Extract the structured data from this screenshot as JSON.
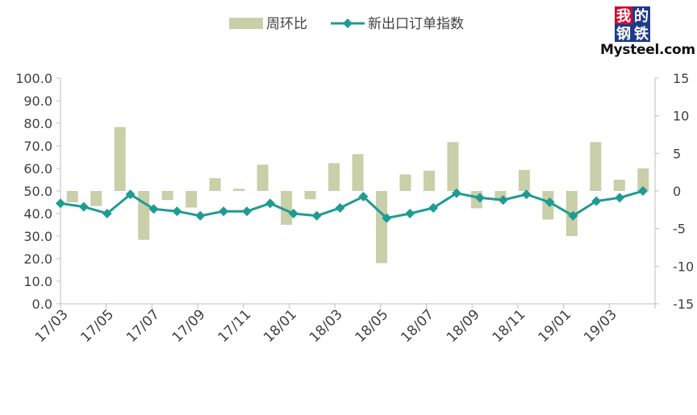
{
  "chart_data": {
    "type": "bar+line",
    "legend": {
      "bar_label": "周环比",
      "line_label": "新出口订单指数",
      "placement": "top-center"
    },
    "x_ticks": [
      "17/03",
      "17/05",
      "17/07",
      "17/09",
      "17/11",
      "18/01",
      "18/03",
      "18/05",
      "18/07",
      "18/09",
      "18/11",
      "19/01",
      "19/03"
    ],
    "y_left": {
      "ticks": [
        "0.0",
        "10.0",
        "20.0",
        "30.0",
        "40.0",
        "50.0",
        "60.0",
        "70.0",
        "80.0",
        "90.0",
        "100.0"
      ],
      "ylim": [
        0,
        100
      ]
    },
    "y_right": {
      "ticks": [
        "-15",
        "-10",
        "-5",
        "0",
        "5",
        "10",
        "15"
      ],
      "ylim": [
        -15,
        15
      ]
    },
    "series": [
      {
        "name": "周环比",
        "type": "bar",
        "axis": "right",
        "color": "#c8cfa9",
        "values": [
          -1.5,
          -2.0,
          8.5,
          -6.5,
          -1.2,
          -2.2,
          1.7,
          0.3,
          3.5,
          -4.5,
          -1.1,
          3.7,
          4.9,
          -9.6,
          2.2,
          2.7,
          6.5,
          -2.3,
          -1.3,
          2.8,
          -3.8,
          -6.0,
          6.5,
          1.5,
          3.0
        ]
      },
      {
        "name": "新出口订单指数",
        "type": "line",
        "axis": "left",
        "color": "#1f9b93",
        "values": [
          44.5,
          43.0,
          40.0,
          48.5,
          42.0,
          41.0,
          39.0,
          41.0,
          41.0,
          44.5,
          40.0,
          39.0,
          42.5,
          47.5,
          38.0,
          40.0,
          42.5,
          49.0,
          47.0,
          46.0,
          48.5,
          45.0,
          39.0,
          45.5,
          47.0,
          50.0
        ]
      }
    ]
  },
  "logo": {
    "chars": [
      "我",
      "的",
      "钢",
      "铁"
    ],
    "colors": [
      "#c8102e",
      "#1e3a8a",
      "#1e3a8a",
      "#1e3a8a"
    ],
    "text": "Mysteel.com"
  }
}
